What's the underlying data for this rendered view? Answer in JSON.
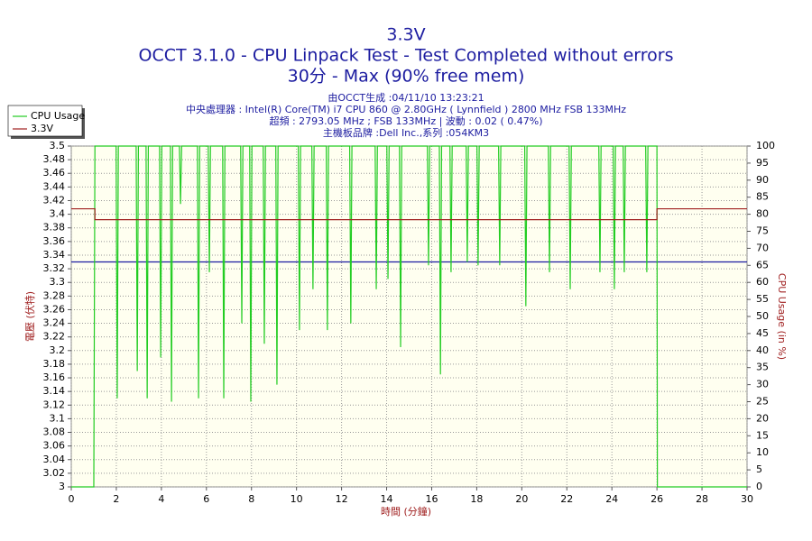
{
  "chart_data": {
    "type": "line",
    "title": "3.3V",
    "subtitle": "OCCT 3.1.0 - CPU Linpack Test - Test Completed without errors",
    "subtitle2": "30分 - Max (90% free mem)",
    "info": [
      "由OCCT生成 :04/11/10 13:23:21",
      "中央處理器 : Intel(R) Core(TM) i7 CPU 860 @ 2.80GHz ( Lynnfield ) 2800 MHz FSB 133MHz",
      "超頻 : 2793.05 MHz ; FSB 133MHz | 波動 : 0.02 ( 0.47%)",
      "主機板品牌 :Dell Inc.,系列 :054KM3"
    ],
    "xlabel": "時間 (分鐘)",
    "ylabel": "電壓 (伏特)",
    "y2label": "CPU Usage (in %)",
    "xlim": [
      0,
      30
    ],
    "xticks": [
      0,
      2,
      4,
      6,
      8,
      10,
      12,
      14,
      16,
      18,
      20,
      22,
      24,
      26,
      28,
      30
    ],
    "ylim": [
      3,
      3.5
    ],
    "yticks": [
      3,
      3.02,
      3.04,
      3.06,
      3.08,
      3.1,
      3.12,
      3.14,
      3.16,
      3.18,
      3.2,
      3.22,
      3.24,
      3.26,
      3.28,
      3.3,
      3.32,
      3.34,
      3.36,
      3.38,
      3.4,
      3.42,
      3.44,
      3.46,
      3.48,
      3.5
    ],
    "y2lim": [
      0,
      100
    ],
    "y2ticks": [
      0,
      5,
      10,
      15,
      20,
      25,
      30,
      35,
      40,
      45,
      50,
      55,
      60,
      65,
      70,
      75,
      80,
      85,
      90,
      95,
      100
    ],
    "grid": true,
    "legend": "upper left",
    "reference_line": {
      "value": 3.33,
      "color": "#1c1ca0"
    },
    "series": [
      {
        "name": "CPU Usage",
        "color": "#22cc22",
        "axis": "y2",
        "x": [
          0,
          1,
          1.05,
          1.99,
          2.04,
          2.09,
          2.88,
          2.93,
          2.98,
          3.32,
          3.37,
          3.42,
          3.92,
          3.97,
          4.02,
          4.4,
          4.45,
          4.5,
          4.8,
          4.85,
          4.9,
          5.6,
          5.65,
          5.7,
          6.08,
          6.13,
          6.18,
          6.72,
          6.77,
          6.82,
          7.52,
          7.57,
          7.62,
          7.92,
          7.97,
          8.02,
          8.52,
          8.57,
          8.62,
          9.08,
          9.13,
          9.18,
          10.08,
          10.13,
          10.18,
          10.68,
          10.73,
          10.78,
          11.32,
          11.37,
          11.42,
          12.36,
          12.41,
          12.46,
          13.49,
          13.54,
          13.59,
          14.01,
          14.06,
          14.11,
          14.57,
          14.62,
          14.67,
          15.81,
          15.86,
          15.91,
          16.34,
          16.39,
          16.44,
          16.81,
          16.86,
          16.91,
          17.53,
          17.58,
          17.63,
          18.01,
          18.06,
          18.11,
          18.97,
          19.02,
          19.07,
          20.13,
          20.18,
          20.23,
          21.18,
          21.23,
          21.28,
          22.1,
          22.15,
          22.2,
          23.42,
          23.47,
          23.52,
          24.06,
          24.11,
          24.16,
          24.5,
          24.55,
          24.6,
          25.5,
          25.55,
          25.6,
          26,
          26.02,
          30
        ],
        "values": [
          0,
          0,
          100,
          100,
          26,
          100,
          100,
          34,
          100,
          100,
          26,
          100,
          100,
          38,
          100,
          100,
          25,
          100,
          100,
          83,
          100,
          100,
          26,
          100,
          100,
          63,
          100,
          100,
          26,
          100,
          100,
          48,
          100,
          100,
          25,
          100,
          100,
          42,
          100,
          100,
          30,
          100,
          100,
          46,
          100,
          100,
          58,
          100,
          100,
          46,
          100,
          100,
          48,
          100,
          100,
          58,
          100,
          100,
          61,
          100,
          100,
          41,
          100,
          100,
          65,
          100,
          100,
          33,
          100,
          100,
          63,
          100,
          100,
          66,
          100,
          100,
          65,
          100,
          100,
          65,
          100,
          100,
          53,
          100,
          100,
          63,
          100,
          100,
          58,
          100,
          100,
          63,
          100,
          100,
          58,
          100,
          100,
          63,
          100,
          100,
          63,
          100,
          100,
          0,
          0
        ]
      },
      {
        "name": "3.3V",
        "color": "#a02020",
        "axis": "y",
        "x": [
          0,
          1.05,
          1.05,
          26,
          26,
          30
        ],
        "values": [
          3.408,
          3.408,
          3.392,
          3.392,
          3.408,
          3.408
        ]
      }
    ]
  }
}
